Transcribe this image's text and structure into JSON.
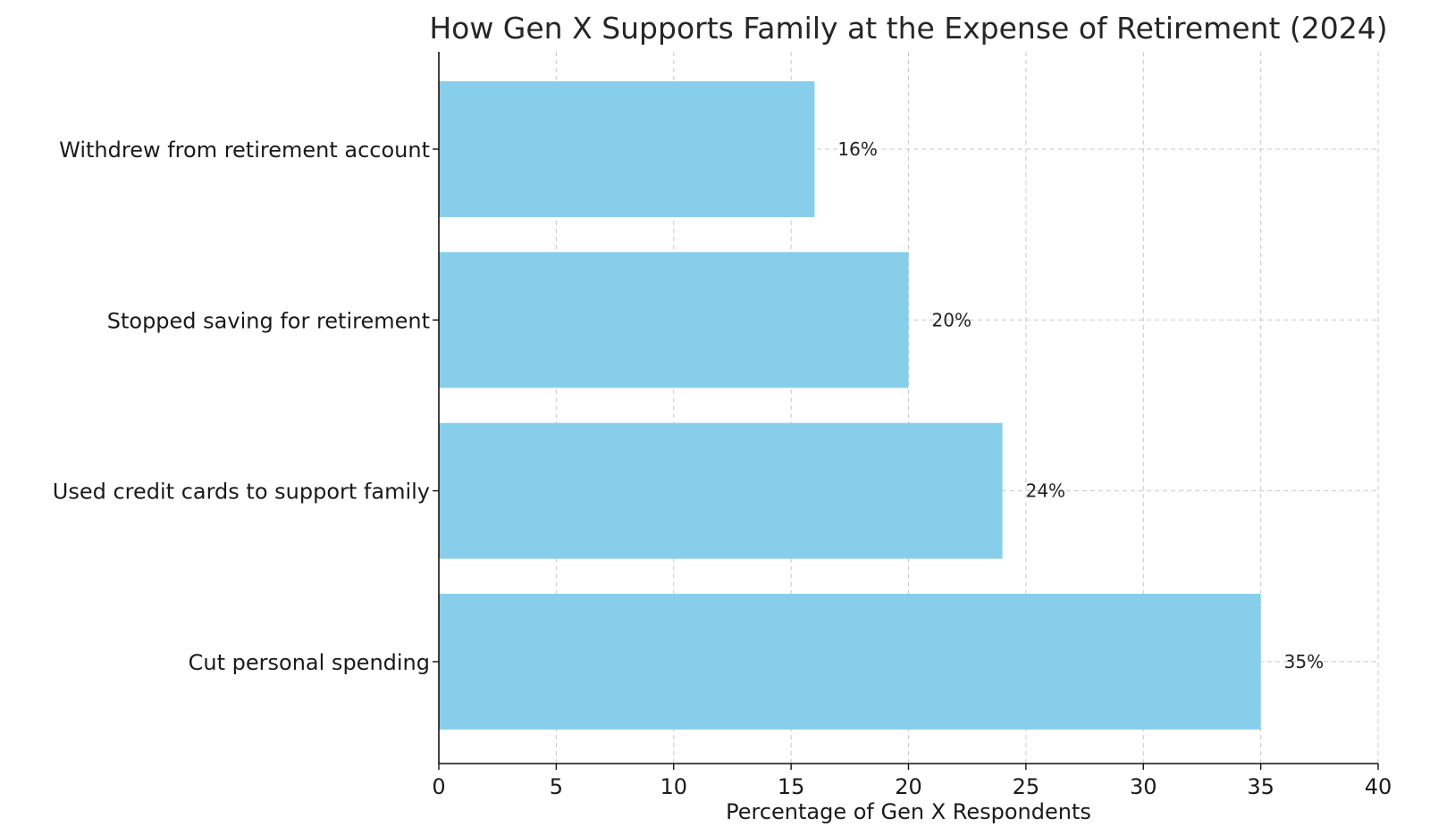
{
  "chart_data": {
    "type": "bar",
    "orientation": "horizontal",
    "title": "How Gen X Supports Family at the Expense of Retirement (2024)",
    "xlabel": "Percentage of Gen X Respondents",
    "ylabel": "",
    "categories": [
      "Cut personal spending",
      "Used credit cards to support family",
      "Stopped saving for retirement",
      "Withdrew from retirement account"
    ],
    "values": [
      35,
      24,
      20,
      16
    ],
    "data_labels": [
      "35%",
      "24%",
      "20%",
      "16%"
    ],
    "xlim": [
      0,
      40
    ],
    "xticks": [
      0,
      5,
      10,
      15,
      20,
      25,
      30,
      35,
      40
    ],
    "xtick_labels": [
      "0",
      "5",
      "10",
      "15",
      "20",
      "25",
      "30",
      "35",
      "40"
    ],
    "bar_color": "#87CEEB",
    "grid": true,
    "legend": "none"
  }
}
